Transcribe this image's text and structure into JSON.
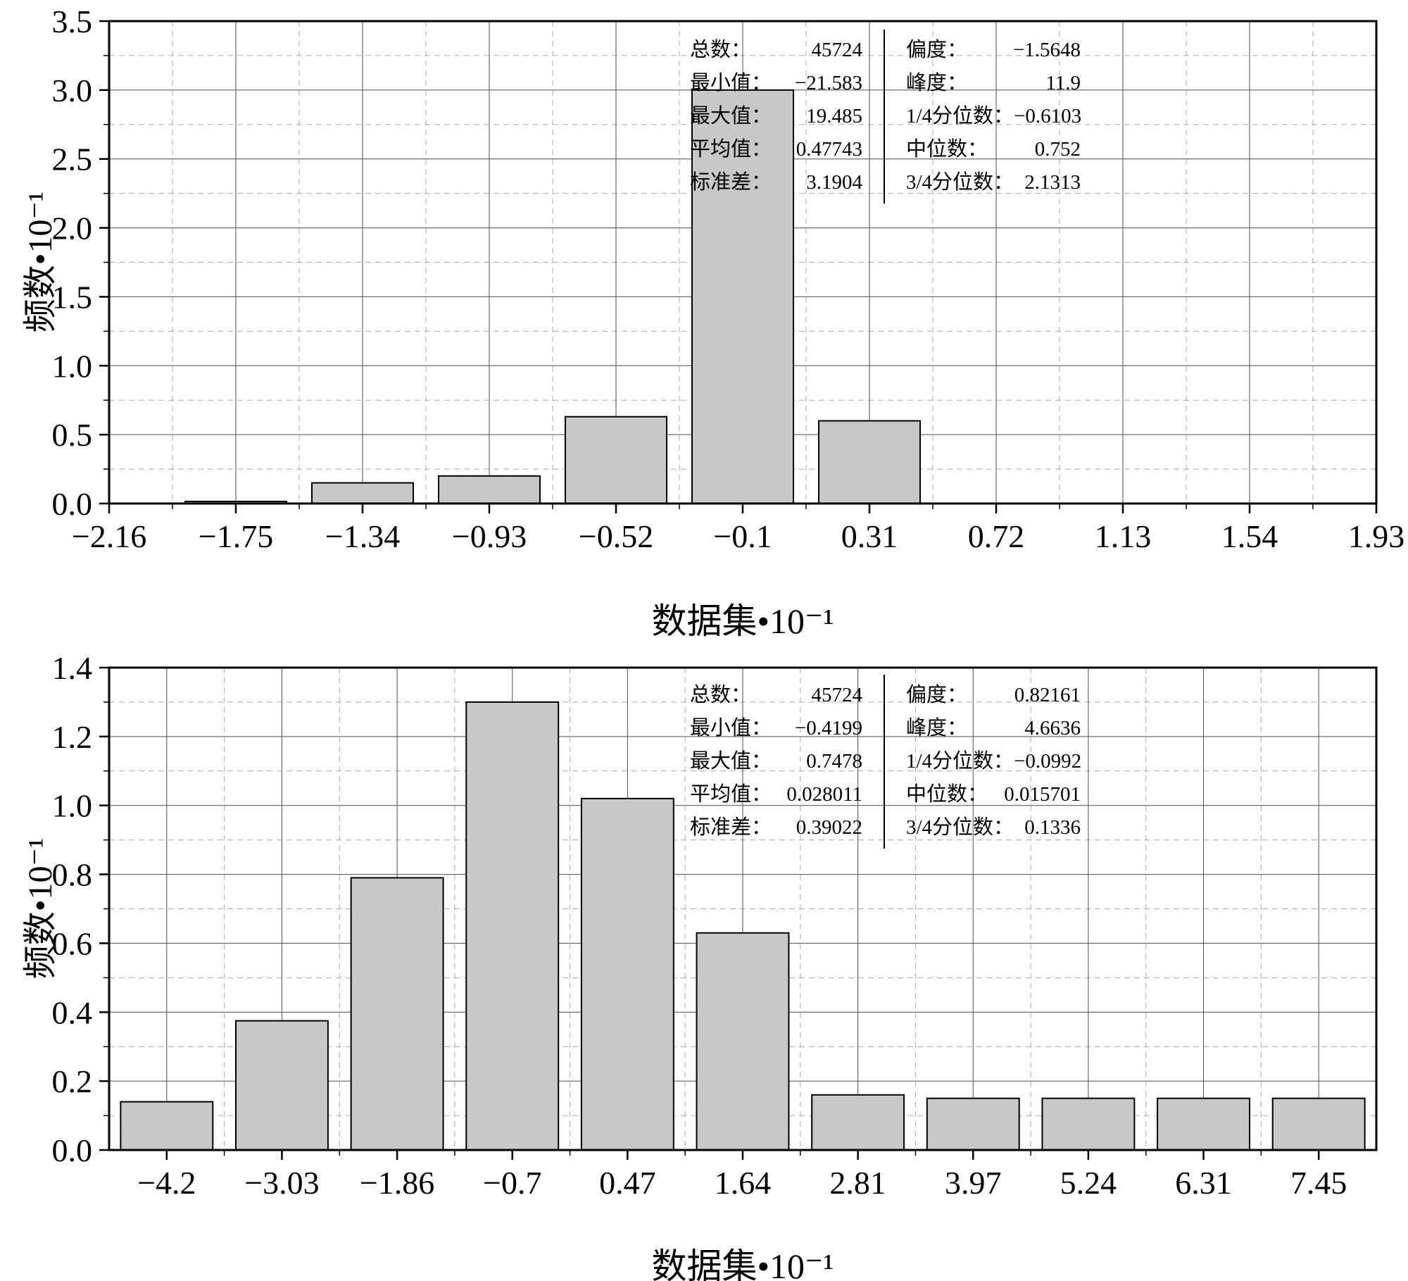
{
  "chart_data": [
    {
      "type": "bar",
      "subtype": "histogram",
      "categories": [
        "−2.16",
        "−1.75",
        "−1.34",
        "−0.93",
        "−0.52",
        "−0.1",
        "0.31",
        "0.72",
        "1.13",
        "1.54",
        "1.93"
      ],
      "values": [
        0,
        0.015,
        0.15,
        0.2,
        0.63,
        3.0,
        0.6,
        0,
        0,
        0,
        0
      ],
      "xlabel": "数据集•10⁻¹",
      "ylabel": "频数•10⁻¹",
      "ylim": [
        0,
        3.5
      ],
      "ytick_step": 0.5,
      "ytick_labels": [
        "0.0",
        "0.5",
        "1.0",
        "1.5",
        "2.0",
        "2.5",
        "3.0",
        "3.5"
      ],
      "bar_color": "#c8c8c8",
      "grid": {
        "major": "solid",
        "minor": "dashed"
      },
      "stats": {
        "left": [
          {
            "label": "总数：",
            "value": "45724"
          },
          {
            "label": "最小值：",
            "value": "−21.583"
          },
          {
            "label": "最大值：",
            "value": "19.485"
          },
          {
            "label": "平均值：",
            "value": "0.47743"
          },
          {
            "label": "标准差：",
            "value": "3.1904"
          }
        ],
        "right": [
          {
            "label": "偏度：",
            "value": "−1.5648"
          },
          {
            "label": "峰度：",
            "value": "11.9"
          },
          {
            "label": "1/4分位数：",
            "value": "−0.6103"
          },
          {
            "label": "中位数：",
            "value": "0.752"
          },
          {
            "label": "3/4分位数：",
            "value": "2.1313"
          }
        ]
      }
    },
    {
      "type": "bar",
      "subtype": "histogram",
      "categories": [
        "−4.2",
        "−3.03",
        "−1.86",
        "−0.7",
        "0.47",
        "1.64",
        "2.81",
        "3.97",
        "5.24",
        "6.31",
        "7.45"
      ],
      "values": [
        0.14,
        0.375,
        0.79,
        1.3,
        1.02,
        0.63,
        0.16,
        0.15,
        0.15,
        0.15,
        0.15
      ],
      "xlabel": "数据集•10⁻¹",
      "ylabel": "频数•10⁻¹",
      "ylim": [
        0,
        1.4
      ],
      "ytick_step": 0.2,
      "ytick_labels": [
        "0.0",
        "0.2",
        "0.4",
        "0.6",
        "0.8",
        "1.0",
        "1.2",
        "1.4"
      ],
      "bar_color": "#c8c8c8",
      "grid": {
        "major": "solid",
        "minor": "dashed"
      },
      "stats": {
        "left": [
          {
            "label": "总数：",
            "value": "45724"
          },
          {
            "label": "最小值：",
            "value": "−0.4199"
          },
          {
            "label": "最大值：",
            "value": "0.7478"
          },
          {
            "label": "平均值：",
            "value": "0.028011"
          },
          {
            "label": "标准差：",
            "value": "0.39022"
          }
        ],
        "right": [
          {
            "label": "偏度：",
            "value": "0.82161"
          },
          {
            "label": "峰度：",
            "value": "4.6636"
          },
          {
            "label": "1/4分位数：",
            "value": "−0.0992"
          },
          {
            "label": "中位数：",
            "value": "0.015701"
          },
          {
            "label": "3/4分位数：",
            "value": "0.1336"
          }
        ]
      }
    }
  ]
}
